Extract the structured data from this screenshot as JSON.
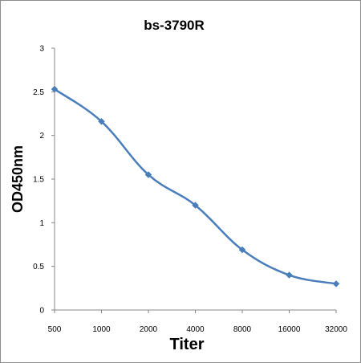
{
  "chart_data": {
    "type": "line",
    "title": "bs-3790R",
    "xlabel": "Titer",
    "ylabel": "OD450nm",
    "categories": [
      "500",
      "1000",
      "2000",
      "4000",
      "8000",
      "16000",
      "32000"
    ],
    "series": [
      {
        "values": [
          2.53,
          2.16,
          1.55,
          1.2,
          0.69,
          0.4,
          0.3
        ],
        "color": "#4a7ebb",
        "marker": "diamond",
        "smooth": true
      }
    ],
    "ylim": [
      0,
      3
    ],
    "yticks": [
      0,
      0.5,
      1,
      1.5,
      2,
      2.5,
      3
    ],
    "ytick_labels": [
      "0",
      "0.5",
      "1",
      "1.5",
      "2",
      "2.5",
      "3"
    ],
    "grid": false,
    "legend": "none"
  }
}
